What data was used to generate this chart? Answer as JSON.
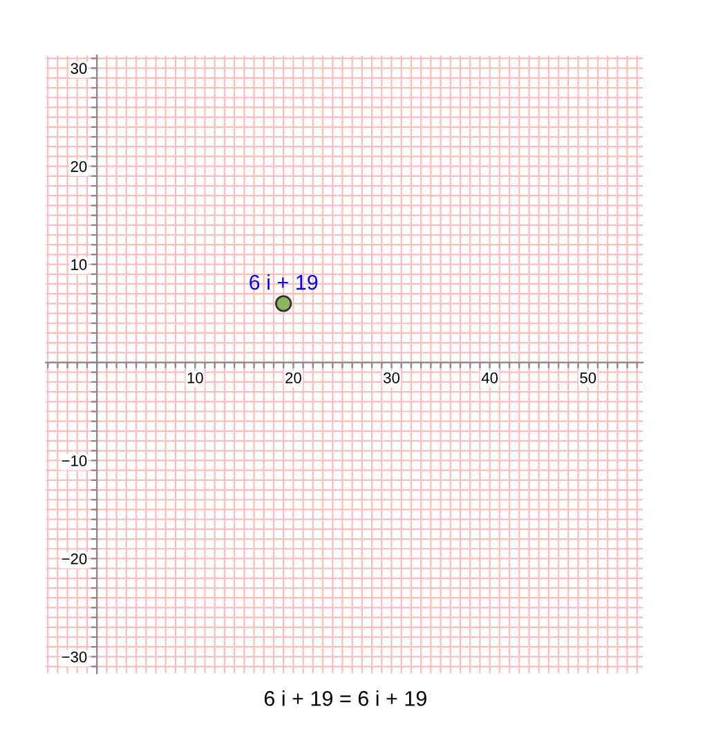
{
  "chart_data": {
    "type": "scatter",
    "x": [
      19
    ],
    "values": [
      6
    ],
    "color": "#8fb35a",
    "marker": "circle",
    "xlim": [
      -5.2,
      55.6
    ],
    "ylim": [
      -31.7,
      31.3
    ],
    "xticks": [
      {
        "value": -5,
        "label": null
      },
      {
        "value": -4,
        "label": null
      },
      {
        "value": -3,
        "label": null
      },
      {
        "value": -2,
        "label": null
      },
      {
        "value": -1,
        "label": null
      },
      {
        "value": 0,
        "label": null
      },
      {
        "value": 1,
        "label": null
      },
      {
        "value": 2,
        "label": null
      },
      {
        "value": 3,
        "label": null
      },
      {
        "value": 4,
        "label": null
      },
      {
        "value": 5,
        "label": null
      },
      {
        "value": 6,
        "label": null
      },
      {
        "value": 7,
        "label": null
      },
      {
        "value": 8,
        "label": null
      },
      {
        "value": 9,
        "label": null
      },
      10,
      {
        "value": 11,
        "label": null
      },
      {
        "value": 12,
        "label": null
      },
      {
        "value": 13,
        "label": null
      },
      {
        "value": 14,
        "label": null
      },
      {
        "value": 15,
        "label": null
      },
      {
        "value": 16,
        "label": null
      },
      {
        "value": 17,
        "label": null
      },
      {
        "value": 18,
        "label": null
      },
      {
        "value": 19,
        "label": null
      },
      20,
      {
        "value": 21,
        "label": null
      },
      {
        "value": 22,
        "label": null
      },
      {
        "value": 23,
        "label": null
      },
      {
        "value": 24,
        "label": null
      },
      {
        "value": 25,
        "label": null
      },
      {
        "value": 26,
        "label": null
      },
      {
        "value": 27,
        "label": null
      },
      {
        "value": 28,
        "label": null
      },
      {
        "value": 29,
        "label": null
      },
      30,
      {
        "value": 31,
        "label": null
      },
      {
        "value": 32,
        "label": null
      },
      {
        "value": 33,
        "label": null
      },
      {
        "value": 34,
        "label": null
      },
      {
        "value": 35,
        "label": null
      },
      {
        "value": 36,
        "label": null
      },
      {
        "value": 37,
        "label": null
      },
      {
        "value": 38,
        "label": null
      },
      {
        "value": 39,
        "label": null
      },
      40,
      {
        "value": 41,
        "label": null
      },
      {
        "value": 42,
        "label": null
      },
      {
        "value": 43,
        "label": null
      },
      {
        "value": 44,
        "label": null
      },
      {
        "value": 45,
        "label": null
      },
      {
        "value": 46,
        "label": null
      },
      {
        "value": 47,
        "label": null
      },
      {
        "value": 48,
        "label": null
      },
      {
        "value": 49,
        "label": null
      },
      50,
      {
        "value": 51,
        "label": null
      },
      {
        "value": 52,
        "label": null
      },
      {
        "value": 53,
        "label": null
      },
      {
        "value": 54,
        "label": null
      },
      {
        "value": 55,
        "label": null
      }
    ],
    "yticks": [
      {
        "value": -31,
        "label": null
      },
      -30,
      {
        "value": -29,
        "label": null
      },
      {
        "value": -28,
        "label": null
      },
      {
        "value": -27,
        "label": null
      },
      {
        "value": -26,
        "label": null
      },
      {
        "value": -25,
        "label": null
      },
      {
        "value": -24,
        "label": null
      },
      {
        "value": -23,
        "label": null
      },
      {
        "value": -22,
        "label": null
      },
      {
        "value": -21,
        "label": null
      },
      -20,
      {
        "value": -19,
        "label": null
      },
      {
        "value": -18,
        "label": null
      },
      {
        "value": -17,
        "label": null
      },
      {
        "value": -16,
        "label": null
      },
      {
        "value": -15,
        "label": null
      },
      {
        "value": -14,
        "label": null
      },
      {
        "value": -13,
        "label": null
      },
      {
        "value": -12,
        "label": null
      },
      {
        "value": -11,
        "label": null
      },
      -10,
      {
        "value": -9,
        "label": null
      },
      {
        "value": -8,
        "label": null
      },
      {
        "value": -7,
        "label": null
      },
      {
        "value": -6,
        "label": null
      },
      {
        "value": -5,
        "label": null
      },
      {
        "value": -4,
        "label": null
      },
      {
        "value": -3,
        "label": null
      },
      {
        "value": -2,
        "label": null
      },
      {
        "value": -1,
        "label": null
      },
      {
        "value": 0,
        "label": null
      },
      {
        "value": 1,
        "label": null
      },
      {
        "value": 2,
        "label": null
      },
      {
        "value": 3,
        "label": null
      },
      {
        "value": 4,
        "label": null
      },
      {
        "value": 5,
        "label": null
      },
      {
        "value": 6,
        "label": null
      },
      {
        "value": 7,
        "label": null
      },
      {
        "value": 8,
        "label": null
      },
      {
        "value": 9,
        "label": null
      },
      10,
      {
        "value": 11,
        "label": null
      },
      {
        "value": 12,
        "label": null
      },
      {
        "value": 13,
        "label": null
      },
      {
        "value": 14,
        "label": null
      },
      {
        "value": 15,
        "label": null
      },
      {
        "value": 16,
        "label": null
      },
      {
        "value": 17,
        "label": null
      },
      {
        "value": 18,
        "label": null
      },
      {
        "value": 19,
        "label": null
      },
      20,
      {
        "value": 21,
        "label": null
      },
      {
        "value": 22,
        "label": null
      },
      {
        "value": 23,
        "label": null
      },
      {
        "value": 24,
        "label": null
      },
      {
        "value": 25,
        "label": null
      },
      {
        "value": 26,
        "label": null
      },
      {
        "value": 27,
        "label": null
      },
      {
        "value": 28,
        "label": null
      },
      {
        "value": 29,
        "label": null
      },
      30,
      {
        "value": 31,
        "label": null
      }
    ],
    "grid": true,
    "annotations": [
      {
        "text": "6 i + 19",
        "x": 19,
        "y": 6
      },
      "6 i + 19 = 6 i + 19"
    ]
  }
}
